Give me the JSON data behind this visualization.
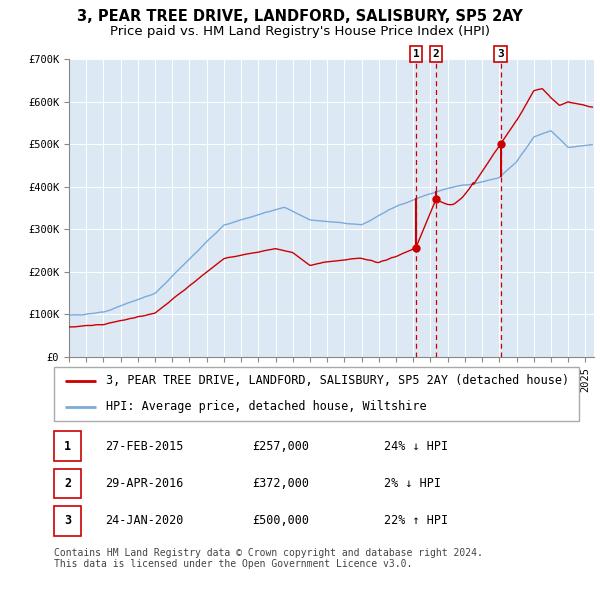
{
  "title": "3, PEAR TREE DRIVE, LANDFORD, SALISBURY, SP5 2AY",
  "subtitle": "Price paid vs. HM Land Registry's House Price Index (HPI)",
  "ylim": [
    0,
    700000
  ],
  "xlim_start": 1995.0,
  "xlim_end": 2025.5,
  "plot_bg_color": "#dde8f5",
  "grid_color": "#ffffff",
  "red_line_color": "#cc0000",
  "blue_line_color": "#7aabdb",
  "sale_marker_color": "#cc0000",
  "sale_dates": [
    2015.16,
    2016.33,
    2020.07
  ],
  "sale_prices": [
    257000,
    372000,
    500000
  ],
  "sale_labels": [
    "1",
    "2",
    "3"
  ],
  "vline_color": "#cc0000",
  "legend_items": [
    "3, PEAR TREE DRIVE, LANDFORD, SALISBURY, SP5 2AY (detached house)",
    "HPI: Average price, detached house, Wiltshire"
  ],
  "table_rows": [
    [
      "1",
      "27-FEB-2015",
      "£257,000",
      "24% ↓ HPI"
    ],
    [
      "2",
      "29-APR-2016",
      "£372,000",
      "2% ↓ HPI"
    ],
    [
      "3",
      "24-JAN-2020",
      "£500,000",
      "22% ↑ HPI"
    ]
  ],
  "footer_text": "Contains HM Land Registry data © Crown copyright and database right 2024.\nThis data is licensed under the Open Government Licence v3.0.",
  "title_fontsize": 10.5,
  "subtitle_fontsize": 9.5,
  "tick_fontsize": 7.5,
  "legend_fontsize": 8.5,
  "table_fontsize": 8.5,
  "footer_fontsize": 7,
  "ytick_labels": [
    "£0",
    "£100K",
    "£200K",
    "£300K",
    "£400K",
    "£500K",
    "£600K",
    "£700K"
  ],
  "ytick_values": [
    0,
    100000,
    200000,
    300000,
    400000,
    500000,
    600000,
    700000
  ]
}
